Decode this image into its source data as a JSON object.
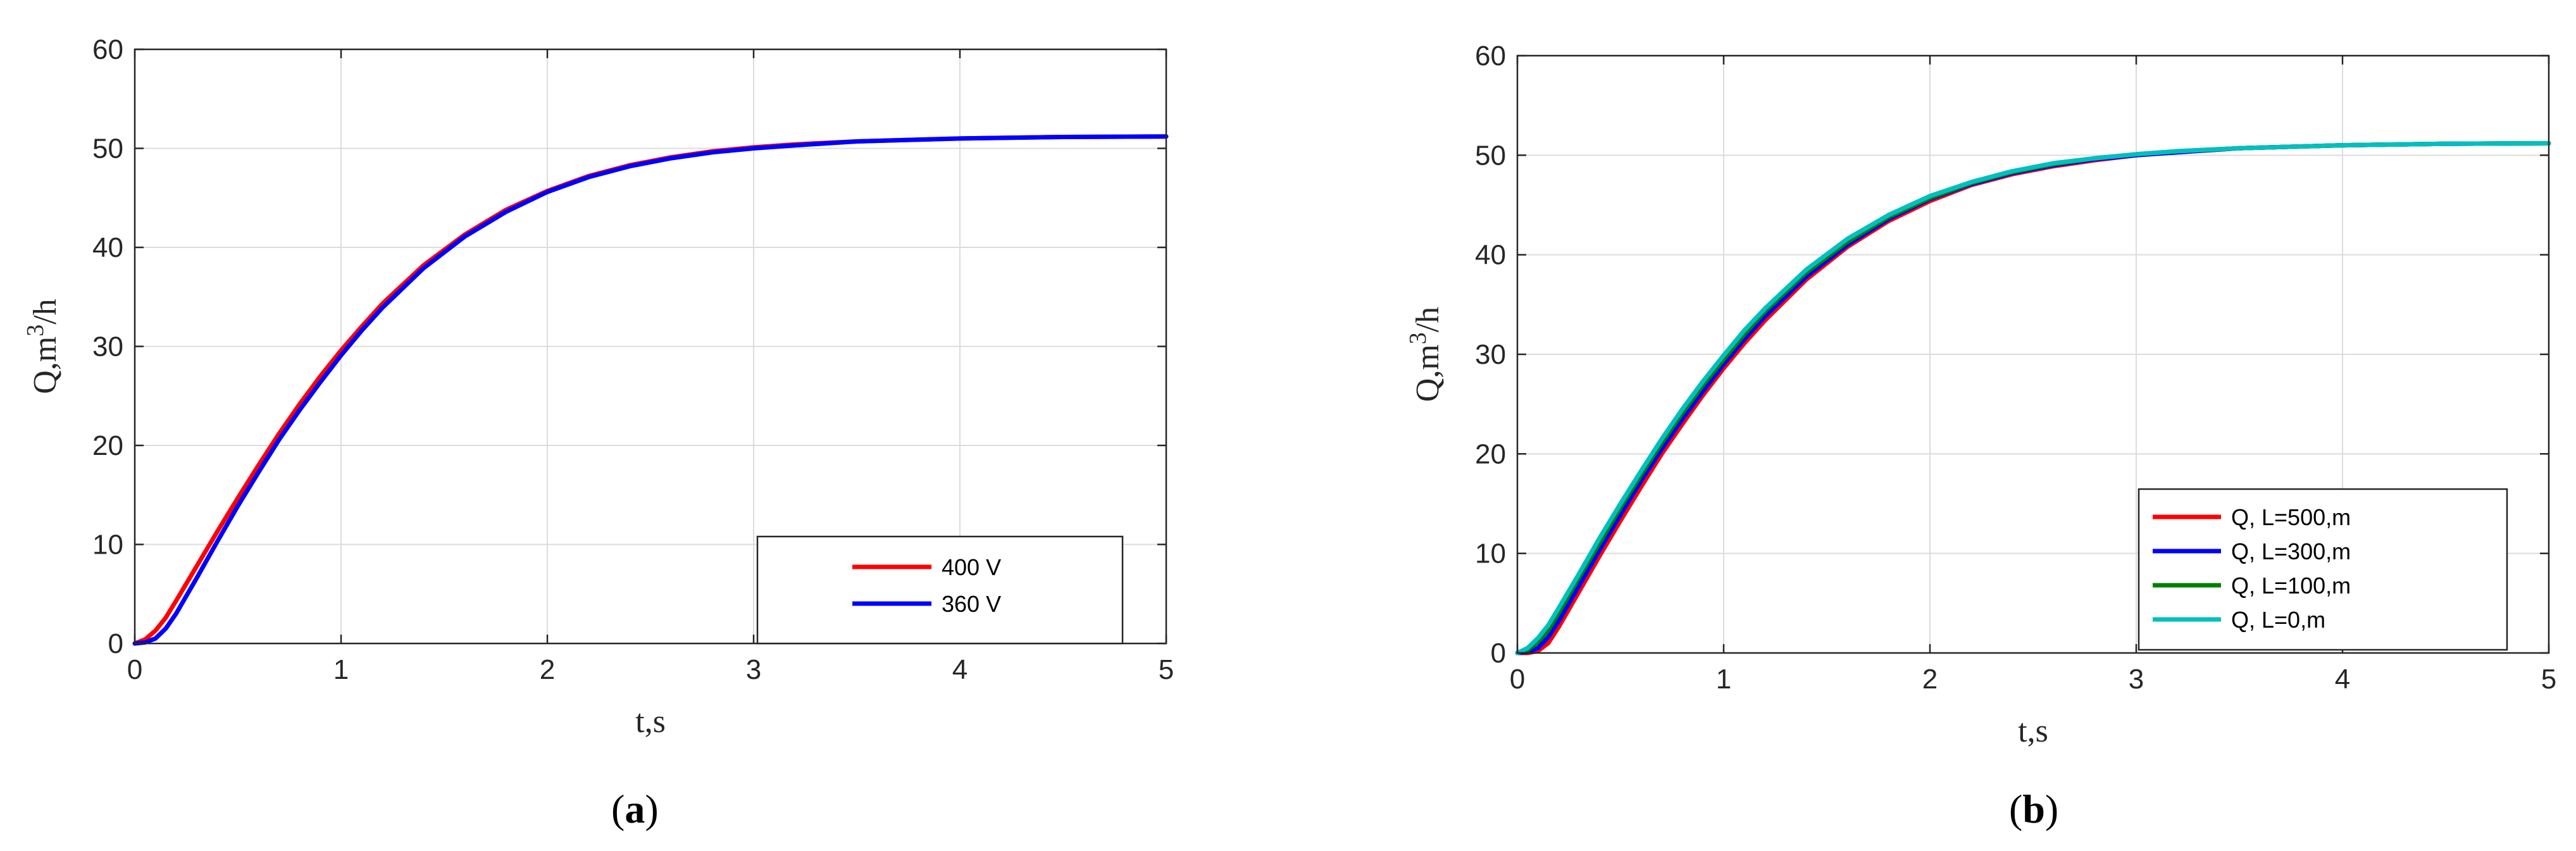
{
  "chart_data": [
    {
      "type": "line",
      "panel_label": "a",
      "title": "",
      "xlabel": "t,s",
      "ylabel_parts": [
        "Q,m",
        "3",
        "/h"
      ],
      "xlim": [
        0,
        5
      ],
      "ylim": [
        0,
        60
      ],
      "xticks": [
        0,
        1,
        2,
        3,
        4,
        5
      ],
      "yticks": [
        0,
        10,
        20,
        30,
        40,
        50,
        60
      ],
      "grid": true,
      "legend_position": "bottom-right",
      "series": [
        {
          "name": "400 V",
          "color": "#ff0000",
          "x": [
            0,
            0.05,
            0.1,
            0.15,
            0.2,
            0.3,
            0.4,
            0.5,
            0.6,
            0.7,
            0.8,
            0.9,
            1.0,
            1.1,
            1.2,
            1.4,
            1.6,
            1.8,
            2.0,
            2.2,
            2.4,
            2.6,
            2.8,
            3.0,
            3.2,
            3.5,
            4.0,
            4.5,
            5.0
          ],
          "y": [
            0,
            0.4,
            1.3,
            2.6,
            4.3,
            7.8,
            11.3,
            14.7,
            18.0,
            21.2,
            24.2,
            27.0,
            29.6,
            32.0,
            34.3,
            38.2,
            41.3,
            43.8,
            45.7,
            47.2,
            48.3,
            49.1,
            49.7,
            50.1,
            50.4,
            50.7,
            51.0,
            51.15,
            51.2
          ]
        },
        {
          "name": "360 V",
          "color": "#0000ff",
          "x": [
            0,
            0.05,
            0.1,
            0.15,
            0.2,
            0.3,
            0.4,
            0.5,
            0.6,
            0.7,
            0.8,
            0.9,
            1.0,
            1.1,
            1.2,
            1.4,
            1.6,
            1.8,
            2.0,
            2.2,
            2.4,
            2.6,
            2.8,
            3.0,
            3.2,
            3.5,
            4.0,
            4.5,
            5.0
          ],
          "y": [
            0,
            0.1,
            0.5,
            1.5,
            3.0,
            6.6,
            10.3,
            13.9,
            17.3,
            20.6,
            23.6,
            26.4,
            29.1,
            31.6,
            33.9,
            37.9,
            41.1,
            43.6,
            45.6,
            47.1,
            48.2,
            49.0,
            49.6,
            50.0,
            50.3,
            50.7,
            51.0,
            51.15,
            51.2
          ]
        }
      ]
    },
    {
      "type": "line",
      "panel_label": "b",
      "title": "",
      "xlabel": "t,s",
      "ylabel_parts": [
        "Q,m",
        "3",
        "/h"
      ],
      "xlim": [
        0,
        5
      ],
      "ylim": [
        0,
        60
      ],
      "xticks": [
        0,
        1,
        2,
        3,
        4,
        5
      ],
      "yticks": [
        0,
        10,
        20,
        30,
        40,
        50,
        60
      ],
      "grid": true,
      "legend_position": "bottom-right",
      "series": [
        {
          "name": "Q, L=500,m",
          "color": "#ff0000",
          "x": [
            0,
            0.05,
            0.1,
            0.15,
            0.2,
            0.3,
            0.4,
            0.5,
            0.6,
            0.7,
            0.8,
            0.9,
            1.0,
            1.1,
            1.2,
            1.4,
            1.6,
            1.8,
            2.0,
            2.2,
            2.4,
            2.6,
            2.8,
            3.0,
            3.2,
            3.5,
            4.0,
            4.5,
            5.0
          ],
          "y": [
            0,
            0,
            0.2,
            1.0,
            2.6,
            6.2,
            9.8,
            13.3,
            16.7,
            20.0,
            23.0,
            25.9,
            28.6,
            31.1,
            33.4,
            37.5,
            40.8,
            43.4,
            45.4,
            47.0,
            48.1,
            48.9,
            49.5,
            50.0,
            50.3,
            50.7,
            51.0,
            51.15,
            51.2
          ]
        },
        {
          "name": "Q, L=300,m",
          "color": "#0000ff",
          "x": [
            0,
            0.05,
            0.1,
            0.15,
            0.2,
            0.3,
            0.4,
            0.5,
            0.6,
            0.7,
            0.8,
            0.9,
            1.0,
            1.1,
            1.2,
            1.4,
            1.6,
            1.8,
            2.0,
            2.2,
            2.4,
            2.6,
            2.8,
            3.0,
            3.2,
            3.5,
            4.0,
            4.5,
            5.0
          ],
          "y": [
            0,
            0.1,
            0.5,
            1.6,
            3.2,
            6.8,
            10.4,
            13.9,
            17.3,
            20.5,
            23.5,
            26.3,
            29.0,
            31.5,
            33.8,
            37.8,
            41.0,
            43.6,
            45.6,
            47.1,
            48.2,
            49.0,
            49.6,
            50.0,
            50.3,
            50.7,
            51.0,
            51.15,
            51.2
          ]
        },
        {
          "name": "Q, L=100,m",
          "color": "#007f00",
          "x": [
            0,
            0.05,
            0.1,
            0.15,
            0.2,
            0.3,
            0.4,
            0.5,
            0.6,
            0.7,
            0.8,
            0.9,
            1.0,
            1.1,
            1.2,
            1.4,
            1.6,
            1.8,
            2.0,
            2.2,
            2.4,
            2.6,
            2.8,
            3.0,
            3.2,
            3.5,
            4.0,
            4.5,
            5.0
          ],
          "y": [
            0,
            0.3,
            1.1,
            2.3,
            4.0,
            7.6,
            11.1,
            14.6,
            17.9,
            21.1,
            24.1,
            26.9,
            29.5,
            32.0,
            34.3,
            38.2,
            41.3,
            43.8,
            45.7,
            47.2,
            48.3,
            49.1,
            49.7,
            50.1,
            50.4,
            50.7,
            51.0,
            51.15,
            51.2
          ]
        },
        {
          "name": "Q, L=0,m",
          "color": "#00bfbf",
          "x": [
            0,
            0.05,
            0.1,
            0.15,
            0.2,
            0.3,
            0.4,
            0.5,
            0.6,
            0.7,
            0.8,
            0.9,
            1.0,
            1.1,
            1.2,
            1.4,
            1.6,
            1.8,
            2.0,
            2.2,
            2.4,
            2.6,
            2.8,
            3.0,
            3.2,
            3.5,
            4.0,
            4.5,
            5.0
          ],
          "y": [
            0,
            0.5,
            1.5,
            2.8,
            4.5,
            8.0,
            11.6,
            15.0,
            18.3,
            21.5,
            24.5,
            27.3,
            29.9,
            32.4,
            34.6,
            38.5,
            41.6,
            44.0,
            45.9,
            47.3,
            48.4,
            49.2,
            49.7,
            50.1,
            50.4,
            50.7,
            51.0,
            51.15,
            51.2
          ]
        }
      ]
    }
  ]
}
